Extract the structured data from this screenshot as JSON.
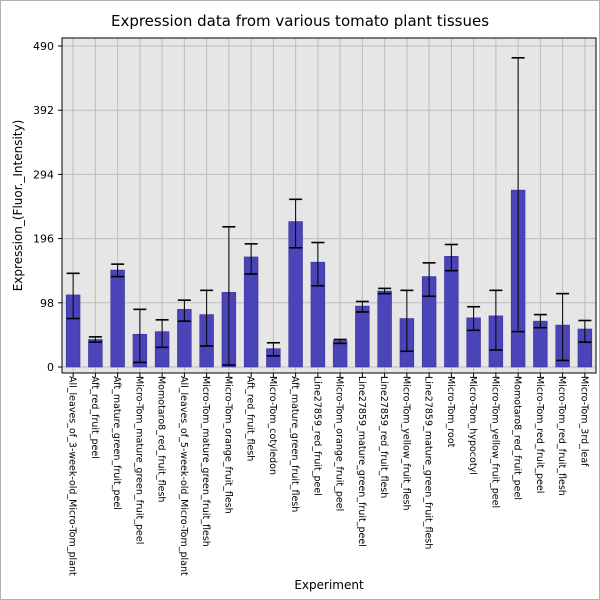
{
  "chart_data": {
    "type": "bar",
    "title": "Expression data from various tomato plant tissues",
    "xlabel": "Experiment",
    "ylabel": "Expression_(Fluor._Intensity)",
    "ylim": [
      0,
      490
    ],
    "yticks": [
      0,
      98,
      196,
      294,
      392,
      490
    ],
    "grid": true,
    "bar_color": "#4b44b8",
    "plot_background": "#e6e6e6",
    "error_bars": true,
    "categories": [
      "All_leaves_of_3-week-old_Micro-Tom_plant",
      "Aft_red_fruit_peel",
      "Aft_mature_green_fruit_peel",
      "Micro-Tom_mature_green_fruit_peel",
      "Momotaro8_red_fruit_flesh",
      "All_leaves_of_5-week-old_Micro-Tom_plant",
      "Micro-Tom_mature_green_fruit_flesh",
      "Micro-Tom_orange_fruit_flesh",
      "Aft_red_fruit_flesh",
      "Micro-Tom_cotyledon",
      "Aft_mature_green_fruit_flesh",
      "Line27859_red_fruit_peel",
      "Micro-Tom_orange_fruit_peel",
      "Line27859_mature_green_fruit_peel",
      "Line27859_red_fruit_flesh",
      "Micro-Tom_yellow_fruit_flesh",
      "Line27859_mature_green_fruit_flesh",
      "Micro-Tom_root",
      "Micro-Tom_hypocotyl",
      "Micro-Tom_yellow_fruit_peel",
      "Momotaro8_red_fruit_peel",
      "Micro-Tom_red_fruit_peel",
      "Micro-Tom_red_fruit_flesh",
      "Micro-Tom_3rd_leaf"
    ],
    "values": [
      110,
      42,
      148,
      50,
      54,
      88,
      80,
      114,
      168,
      28,
      222,
      160,
      40,
      93,
      116,
      74,
      138,
      169,
      75,
      78,
      270,
      70,
      64,
      58
    ],
    "error_low": [
      74,
      38,
      138,
      7,
      30,
      70,
      32,
      3,
      142,
      17,
      182,
      124,
      36,
      84,
      112,
      24,
      108,
      147,
      56,
      26,
      54,
      60,
      10,
      38
    ],
    "error_high": [
      143,
      46,
      157,
      88,
      72,
      102,
      117,
      214,
      188,
      37,
      256,
      190,
      42,
      100,
      120,
      117,
      159,
      187,
      92,
      117,
      472,
      80,
      112,
      71
    ]
  }
}
